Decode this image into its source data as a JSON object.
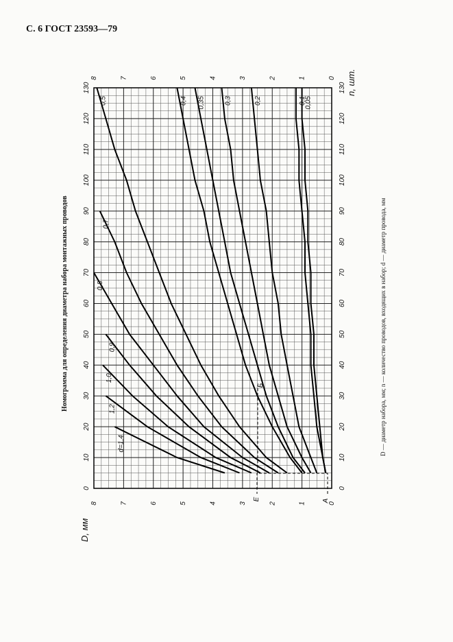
{
  "header": "С. 6 ГОСТ 23593—79",
  "caption": "D — диаметр набора, мм; n — количество проводов, входящих в набор; d — диаметр провода, мм",
  "chart_data": {
    "type": "line",
    "title": "Номограмма для определения диаметра набора монтажных проводов",
    "xlabel": "n, шт.",
    "ylabel": "D, мм",
    "color": "#000000",
    "grid": true,
    "xlim": [
      0,
      130
    ],
    "ylim": [
      0,
      8
    ],
    "xticks": [
      0,
      10,
      20,
      30,
      40,
      50,
      60,
      70,
      80,
      90,
      100,
      110,
      120,
      130
    ],
    "yticks": [
      0,
      1,
      2,
      3,
      4,
      5,
      6,
      7,
      8
    ],
    "annotations": [
      "E",
      "Б",
      "A"
    ],
    "x": [
      5,
      10,
      20,
      30,
      40,
      50,
      60,
      70,
      80,
      90,
      100,
      110,
      120,
      130
    ],
    "series": [
      {
        "name": "d=1,4",
        "values": [
          3.6,
          5.2,
          7.3,
          null,
          null,
          null,
          null,
          null,
          null,
          null,
          null,
          null,
          null,
          null
        ]
      },
      {
        "name": "1,2",
        "values": [
          3.1,
          4.4,
          6.2,
          7.6,
          null,
          null,
          null,
          null,
          null,
          null,
          null,
          null,
          null,
          null
        ]
      },
      {
        "name": "1,0",
        "values": [
          2.7,
          3.9,
          5.5,
          6.7,
          7.7,
          null,
          null,
          null,
          null,
          null,
          null,
          null,
          null,
          null
        ]
      },
      {
        "name": "0,9",
        "values": [
          2.4,
          3.4,
          4.8,
          5.9,
          6.8,
          7.6,
          null,
          null,
          null,
          null,
          null,
          null,
          null,
          null
        ]
      },
      {
        "name": "0,8",
        "values": [
          2.1,
          3.0,
          4.3,
          5.2,
          6.0,
          6.8,
          7.4,
          8.0,
          null,
          null,
          null,
          null,
          null,
          null
        ]
      },
      {
        "name": "0,7",
        "values": [
          1.8,
          2.6,
          3.7,
          4.5,
          5.2,
          5.8,
          6.4,
          6.9,
          7.3,
          7.8,
          null,
          null,
          null,
          null
        ]
      },
      {
        "name": "0,5",
        "values": [
          1.5,
          2.2,
          3.1,
          3.8,
          4.4,
          4.9,
          5.4,
          5.8,
          6.2,
          6.6,
          6.9,
          7.3,
          7.6,
          7.9
        ]
      },
      {
        "name": "0,4",
        "values": [
          1.0,
          1.4,
          2.0,
          2.5,
          2.9,
          3.2,
          3.5,
          3.8,
          4.1,
          4.3,
          4.6,
          4.8,
          5.0,
          5.2
        ]
      },
      {
        "name": "0,35",
        "values": [
          0.9,
          1.3,
          1.8,
          2.2,
          2.5,
          2.8,
          3.1,
          3.4,
          3.6,
          3.8,
          4.0,
          4.2,
          4.4,
          4.6
        ]
      },
      {
        "name": "0,3",
        "values": [
          0.7,
          1.0,
          1.5,
          1.8,
          2.1,
          2.3,
          2.5,
          2.7,
          2.9,
          3.1,
          3.3,
          3.4,
          3.6,
          3.7
        ]
      },
      {
        "name": "0,2",
        "values": [
          0.5,
          0.7,
          1.1,
          1.3,
          1.5,
          1.7,
          1.8,
          2.0,
          2.1,
          2.2,
          2.4,
          2.5,
          2.6,
          2.7
        ]
      },
      {
        "name": "0,1",
        "values": [
          0.2,
          0.3,
          0.5,
          0.6,
          0.7,
          0.7,
          0.8,
          0.9,
          0.9,
          1.0,
          1.1,
          1.1,
          1.2,
          1.2
        ]
      },
      {
        "name": "0,05",
        "values": [
          0.2,
          0.3,
          0.4,
          0.5,
          0.6,
          0.6,
          0.7,
          0.7,
          0.8,
          0.8,
          0.9,
          0.9,
          1.0,
          1.0
        ]
      }
    ]
  }
}
